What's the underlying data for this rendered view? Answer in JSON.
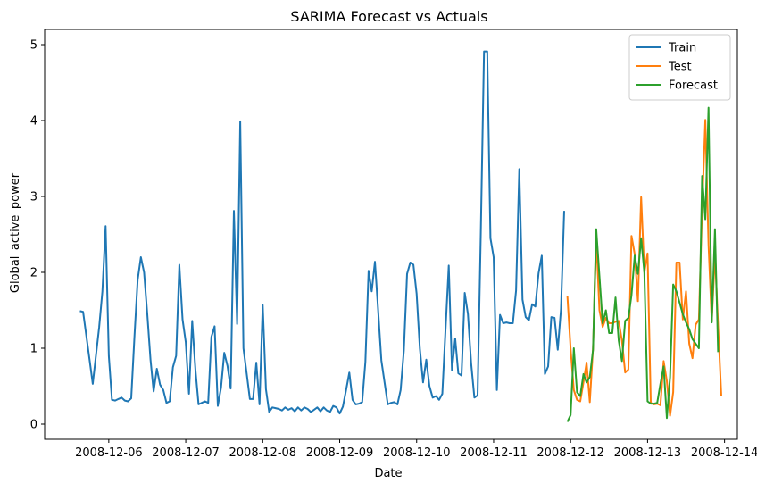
{
  "chart_data": {
    "type": "line",
    "title": "SARIMA Forecast vs Actuals",
    "xlabel": "Date",
    "ylabel": "Global_active_power",
    "x_ticks": [
      "2008-12-06",
      "2008-12-07",
      "2008-12-08",
      "2008-12-09",
      "2008-12-10",
      "2008-12-11",
      "2008-12-12",
      "2008-12-13",
      "2008-12-14"
    ],
    "y_ticks": [
      0,
      1,
      2,
      3,
      4,
      5
    ],
    "xlim": [
      "2008-12-05 04:00",
      "2008-12-14 04:00"
    ],
    "ylim": [
      -0.2,
      5.2
    ],
    "grid": false,
    "legend_position": "top-right",
    "series": [
      {
        "name": "Train",
        "color": "#1f77b4",
        "points": [
          [
            "2008-12-05 15:00",
            1.49
          ],
          [
            "2008-12-05 16:00",
            1.48
          ],
          [
            "2008-12-05 18:00",
            0.85
          ],
          [
            "2008-12-05 19:00",
            0.53
          ],
          [
            "2008-12-05 21:00",
            1.28
          ],
          [
            "2008-12-05 22:00",
            1.75
          ],
          [
            "2008-12-05 23:00",
            2.61
          ],
          [
            "2008-12-06 00:00",
            0.9
          ],
          [
            "2008-12-06 01:00",
            0.32
          ],
          [
            "2008-12-06 02:00",
            0.31
          ],
          [
            "2008-12-06 03:00",
            0.33
          ],
          [
            "2008-12-06 04:00",
            0.35
          ],
          [
            "2008-12-06 05:00",
            0.31
          ],
          [
            "2008-12-06 06:00",
            0.3
          ],
          [
            "2008-12-06 07:00",
            0.34
          ],
          [
            "2008-12-06 08:00",
            1.15
          ],
          [
            "2008-12-06 09:00",
            1.9
          ],
          [
            "2008-12-06 10:00",
            2.2
          ],
          [
            "2008-12-06 11:00",
            2.0
          ],
          [
            "2008-12-06 12:00",
            1.45
          ],
          [
            "2008-12-06 13:00",
            0.85
          ],
          [
            "2008-12-06 14:00",
            0.43
          ],
          [
            "2008-12-06 15:00",
            0.73
          ],
          [
            "2008-12-06 16:00",
            0.52
          ],
          [
            "2008-12-06 17:00",
            0.45
          ],
          [
            "2008-12-06 18:00",
            0.28
          ],
          [
            "2008-12-06 19:00",
            0.3
          ],
          [
            "2008-12-06 20:00",
            0.75
          ],
          [
            "2008-12-06 21:00",
            0.9
          ],
          [
            "2008-12-06 22:00",
            2.1
          ],
          [
            "2008-12-06 23:00",
            1.38
          ],
          [
            "2008-12-07 00:00",
            1.08
          ],
          [
            "2008-12-07 01:00",
            0.4
          ],
          [
            "2008-12-07 02:00",
            1.36
          ],
          [
            "2008-12-07 03:00",
            0.72
          ],
          [
            "2008-12-07 04:00",
            0.26
          ],
          [
            "2008-12-07 05:00",
            0.28
          ],
          [
            "2008-12-07 06:00",
            0.3
          ],
          [
            "2008-12-07 07:00",
            0.28
          ],
          [
            "2008-12-07 08:00",
            1.15
          ],
          [
            "2008-12-07 09:00",
            1.29
          ],
          [
            "2008-12-07 10:00",
            0.24
          ],
          [
            "2008-12-07 11:00",
            0.48
          ],
          [
            "2008-12-07 12:00",
            0.94
          ],
          [
            "2008-12-07 13:00",
            0.77
          ],
          [
            "2008-12-07 14:00",
            0.47
          ],
          [
            "2008-12-07 15:00",
            2.81
          ],
          [
            "2008-12-07 16:00",
            1.32
          ],
          [
            "2008-12-07 17:00",
            3.99
          ],
          [
            "2008-12-07 18:00",
            1.0
          ],
          [
            "2008-12-07 19:00",
            0.67
          ],
          [
            "2008-12-07 20:00",
            0.33
          ],
          [
            "2008-12-07 21:00",
            0.33
          ],
          [
            "2008-12-07 22:00",
            0.81
          ],
          [
            "2008-12-07 23:00",
            0.26
          ],
          [
            "2008-12-08 00:00",
            1.57
          ],
          [
            "2008-12-08 01:00",
            0.46
          ],
          [
            "2008-12-08 02:00",
            0.16
          ],
          [
            "2008-12-08 03:00",
            0.22
          ],
          [
            "2008-12-08 04:00",
            0.21
          ],
          [
            "2008-12-08 05:00",
            0.2
          ],
          [
            "2008-12-08 06:00",
            0.18
          ],
          [
            "2008-12-08 07:00",
            0.22
          ],
          [
            "2008-12-08 08:00",
            0.19
          ],
          [
            "2008-12-08 09:00",
            0.21
          ],
          [
            "2008-12-08 10:00",
            0.17
          ],
          [
            "2008-12-08 11:00",
            0.22
          ],
          [
            "2008-12-08 12:00",
            0.18
          ],
          [
            "2008-12-08 13:00",
            0.22
          ],
          [
            "2008-12-08 14:00",
            0.2
          ],
          [
            "2008-12-08 15:00",
            0.16
          ],
          [
            "2008-12-08 16:00",
            0.19
          ],
          [
            "2008-12-08 17:00",
            0.22
          ],
          [
            "2008-12-08 18:00",
            0.17
          ],
          [
            "2008-12-08 19:00",
            0.22
          ],
          [
            "2008-12-08 20:00",
            0.18
          ],
          [
            "2008-12-08 21:00",
            0.16
          ],
          [
            "2008-12-08 22:00",
            0.24
          ],
          [
            "2008-12-08 23:00",
            0.22
          ],
          [
            "2008-12-09 00:00",
            0.14
          ],
          [
            "2008-12-09 01:00",
            0.23
          ],
          [
            "2008-12-09 02:00",
            0.45
          ],
          [
            "2008-12-09 03:00",
            0.68
          ],
          [
            "2008-12-09 04:00",
            0.32
          ],
          [
            "2008-12-09 05:00",
            0.26
          ],
          [
            "2008-12-09 06:00",
            0.27
          ],
          [
            "2008-12-09 07:00",
            0.29
          ],
          [
            "2008-12-09 08:00",
            0.82
          ],
          [
            "2008-12-09 09:00",
            2.02
          ],
          [
            "2008-12-09 10:00",
            1.75
          ],
          [
            "2008-12-09 11:00",
            2.14
          ],
          [
            "2008-12-09 12:00",
            1.5
          ],
          [
            "2008-12-09 13:00",
            0.84
          ],
          [
            "2008-12-09 14:00",
            0.55
          ],
          [
            "2008-12-09 15:00",
            0.26
          ],
          [
            "2008-12-09 16:00",
            0.28
          ],
          [
            "2008-12-09 17:00",
            0.29
          ],
          [
            "2008-12-09 18:00",
            0.26
          ],
          [
            "2008-12-09 19:00",
            0.45
          ],
          [
            "2008-12-09 20:00",
            0.97
          ],
          [
            "2008-12-09 21:00",
            1.98
          ],
          [
            "2008-12-09 22:00",
            2.13
          ],
          [
            "2008-12-09 23:00",
            2.1
          ],
          [
            "2008-12-10 00:00",
            1.72
          ],
          [
            "2008-12-10 01:00",
            1.0
          ],
          [
            "2008-12-10 02:00",
            0.55
          ],
          [
            "2008-12-10 03:00",
            0.85
          ],
          [
            "2008-12-10 04:00",
            0.5
          ],
          [
            "2008-12-10 05:00",
            0.35
          ],
          [
            "2008-12-10 06:00",
            0.37
          ],
          [
            "2008-12-10 07:00",
            0.32
          ],
          [
            "2008-12-10 08:00",
            0.4
          ],
          [
            "2008-12-10 09:00",
            1.25
          ],
          [
            "2008-12-10 10:00",
            2.09
          ],
          [
            "2008-12-10 11:00",
            0.71
          ],
          [
            "2008-12-10 12:00",
            1.13
          ],
          [
            "2008-12-10 13:00",
            0.67
          ],
          [
            "2008-12-10 14:00",
            0.64
          ],
          [
            "2008-12-10 15:00",
            1.73
          ],
          [
            "2008-12-10 16:00",
            1.45
          ],
          [
            "2008-12-10 17:00",
            0.8
          ],
          [
            "2008-12-10 18:00",
            0.35
          ],
          [
            "2008-12-10 19:00",
            0.38
          ],
          [
            "2008-12-10 20:00",
            2.53
          ],
          [
            "2008-12-10 21:00",
            4.91
          ],
          [
            "2008-12-10 22:00",
            4.91
          ],
          [
            "2008-12-10 23:00",
            2.45
          ],
          [
            "2008-12-11 00:00",
            2.2
          ],
          [
            "2008-12-11 01:00",
            0.45
          ],
          [
            "2008-12-11 02:00",
            1.44
          ],
          [
            "2008-12-11 03:00",
            1.33
          ],
          [
            "2008-12-11 04:00",
            1.34
          ],
          [
            "2008-12-11 05:00",
            1.33
          ],
          [
            "2008-12-11 06:00",
            1.33
          ],
          [
            "2008-12-11 07:00",
            1.76
          ],
          [
            "2008-12-11 08:00",
            3.36
          ],
          [
            "2008-12-11 09:00",
            1.64
          ],
          [
            "2008-12-11 10:00",
            1.41
          ],
          [
            "2008-12-11 11:00",
            1.37
          ],
          [
            "2008-12-11 12:00",
            1.58
          ],
          [
            "2008-12-11 13:00",
            1.55
          ],
          [
            "2008-12-11 14:00",
            1.99
          ],
          [
            "2008-12-11 15:00",
            2.22
          ],
          [
            "2008-12-11 16:00",
            0.66
          ],
          [
            "2008-12-11 17:00",
            0.76
          ],
          [
            "2008-12-11 18:00",
            1.41
          ],
          [
            "2008-12-11 19:00",
            1.4
          ],
          [
            "2008-12-11 20:00",
            0.98
          ],
          [
            "2008-12-11 21:00",
            1.51
          ],
          [
            "2008-12-11 22:00",
            2.81
          ]
        ]
      },
      {
        "name": "Test",
        "color": "#ff7f0e",
        "points": [
          [
            "2008-12-11 23:00",
            1.69
          ],
          [
            "2008-12-12 00:00",
            0.99
          ],
          [
            "2008-12-12 01:00",
            0.45
          ],
          [
            "2008-12-12 02:00",
            0.32
          ],
          [
            "2008-12-12 03:00",
            0.3
          ],
          [
            "2008-12-12 04:00",
            0.55
          ],
          [
            "2008-12-12 05:00",
            0.81
          ],
          [
            "2008-12-12 06:00",
            0.29
          ],
          [
            "2008-12-12 07:00",
            1.0
          ],
          [
            "2008-12-12 08:00",
            2.45
          ],
          [
            "2008-12-12 09:00",
            1.5
          ],
          [
            "2008-12-12 10:00",
            1.28
          ],
          [
            "2008-12-12 11:00",
            1.4
          ],
          [
            "2008-12-12 12:00",
            1.33
          ],
          [
            "2008-12-12 13:00",
            1.33
          ],
          [
            "2008-12-12 14:00",
            1.35
          ],
          [
            "2008-12-12 15:00",
            1.36
          ],
          [
            "2008-12-12 16:00",
            1.1
          ],
          [
            "2008-12-12 17:00",
            0.68
          ],
          [
            "2008-12-12 18:00",
            0.72
          ],
          [
            "2008-12-12 19:00",
            2.48
          ],
          [
            "2008-12-12 20:00",
            2.24
          ],
          [
            "2008-12-12 21:00",
            1.62
          ],
          [
            "2008-12-12 22:00",
            2.99
          ],
          [
            "2008-12-12 23:00",
            2.0
          ],
          [
            "2008-12-13 00:00",
            2.25
          ],
          [
            "2008-12-13 01:00",
            0.28
          ],
          [
            "2008-12-13 02:00",
            0.26
          ],
          [
            "2008-12-13 03:00",
            0.27
          ],
          [
            "2008-12-13 04:00",
            0.25
          ],
          [
            "2008-12-13 05:00",
            0.83
          ],
          [
            "2008-12-13 06:00",
            0.57
          ],
          [
            "2008-12-13 07:00",
            0.11
          ],
          [
            "2008-12-13 08:00",
            0.42
          ],
          [
            "2008-12-13 09:00",
            2.13
          ],
          [
            "2008-12-13 10:00",
            2.13
          ],
          [
            "2008-12-13 11:00",
            1.38
          ],
          [
            "2008-12-13 12:00",
            1.75
          ],
          [
            "2008-12-13 13:00",
            1.06
          ],
          [
            "2008-12-13 14:00",
            0.87
          ],
          [
            "2008-12-13 15:00",
            1.31
          ],
          [
            "2008-12-13 16:00",
            1.38
          ],
          [
            "2008-12-13 17:00",
            2.84
          ],
          [
            "2008-12-13 18:00",
            4.01
          ],
          [
            "2008-12-13 19:00",
            2.36
          ],
          [
            "2008-12-13 20:00",
            1.35
          ],
          [
            "2008-12-13 21:00",
            2.25
          ],
          [
            "2008-12-13 22:00",
            1.3
          ],
          [
            "2008-12-13 23:00",
            0.37
          ]
        ]
      },
      {
        "name": "Forecast",
        "color": "#2ca02c",
        "points": [
          [
            "2008-12-11 23:00",
            0.03
          ],
          [
            "2008-12-12 00:00",
            0.12
          ],
          [
            "2008-12-12 01:00",
            1.0
          ],
          [
            "2008-12-12 02:00",
            0.42
          ],
          [
            "2008-12-12 03:00",
            0.37
          ],
          [
            "2008-12-12 04:00",
            0.66
          ],
          [
            "2008-12-12 05:00",
            0.55
          ],
          [
            "2008-12-12 06:00",
            0.62
          ],
          [
            "2008-12-12 07:00",
            0.98
          ],
          [
            "2008-12-12 08:00",
            2.57
          ],
          [
            "2008-12-12 09:00",
            1.95
          ],
          [
            "2008-12-12 10:00",
            1.33
          ],
          [
            "2008-12-12 11:00",
            1.5
          ],
          [
            "2008-12-12 12:00",
            1.2
          ],
          [
            "2008-12-12 13:00",
            1.2
          ],
          [
            "2008-12-12 14:00",
            1.67
          ],
          [
            "2008-12-12 15:00",
            1.1
          ],
          [
            "2008-12-12 16:00",
            0.83
          ],
          [
            "2008-12-12 17:00",
            1.36
          ],
          [
            "2008-12-12 18:00",
            1.4
          ],
          [
            "2008-12-12 19:00",
            1.7
          ],
          [
            "2008-12-12 20:00",
            2.22
          ],
          [
            "2008-12-12 21:00",
            1.98
          ],
          [
            "2008-12-12 22:00",
            2.45
          ],
          [
            "2008-12-12 23:00",
            2.0
          ],
          [
            "2008-12-13 00:00",
            0.3
          ],
          [
            "2008-12-13 01:00",
            0.27
          ],
          [
            "2008-12-13 02:00",
            0.27
          ],
          [
            "2008-12-13 03:00",
            0.28
          ],
          [
            "2008-12-13 04:00",
            0.53
          ],
          [
            "2008-12-13 05:00",
            0.76
          ],
          [
            "2008-12-13 06:00",
            0.08
          ],
          [
            "2008-12-13 07:00",
            0.62
          ],
          [
            "2008-12-13 08:00",
            1.84
          ],
          [
            "2008-12-13 09:00",
            1.75
          ],
          [
            "2008-12-13 10:00",
            1.6
          ],
          [
            "2008-12-13 11:00",
            1.45
          ],
          [
            "2008-12-13 12:00",
            1.34
          ],
          [
            "2008-12-13 13:00",
            1.25
          ],
          [
            "2008-12-13 14:00",
            1.12
          ],
          [
            "2008-12-13 15:00",
            1.06
          ],
          [
            "2008-12-13 16:00",
            1.0
          ],
          [
            "2008-12-13 17:00",
            3.27
          ],
          [
            "2008-12-13 18:00",
            2.7
          ],
          [
            "2008-12-13 19:00",
            4.17
          ],
          [
            "2008-12-13 20:00",
            1.34
          ],
          [
            "2008-12-13 21:00",
            2.57
          ],
          [
            "2008-12-13 22:00",
            0.95
          ]
        ]
      }
    ]
  }
}
